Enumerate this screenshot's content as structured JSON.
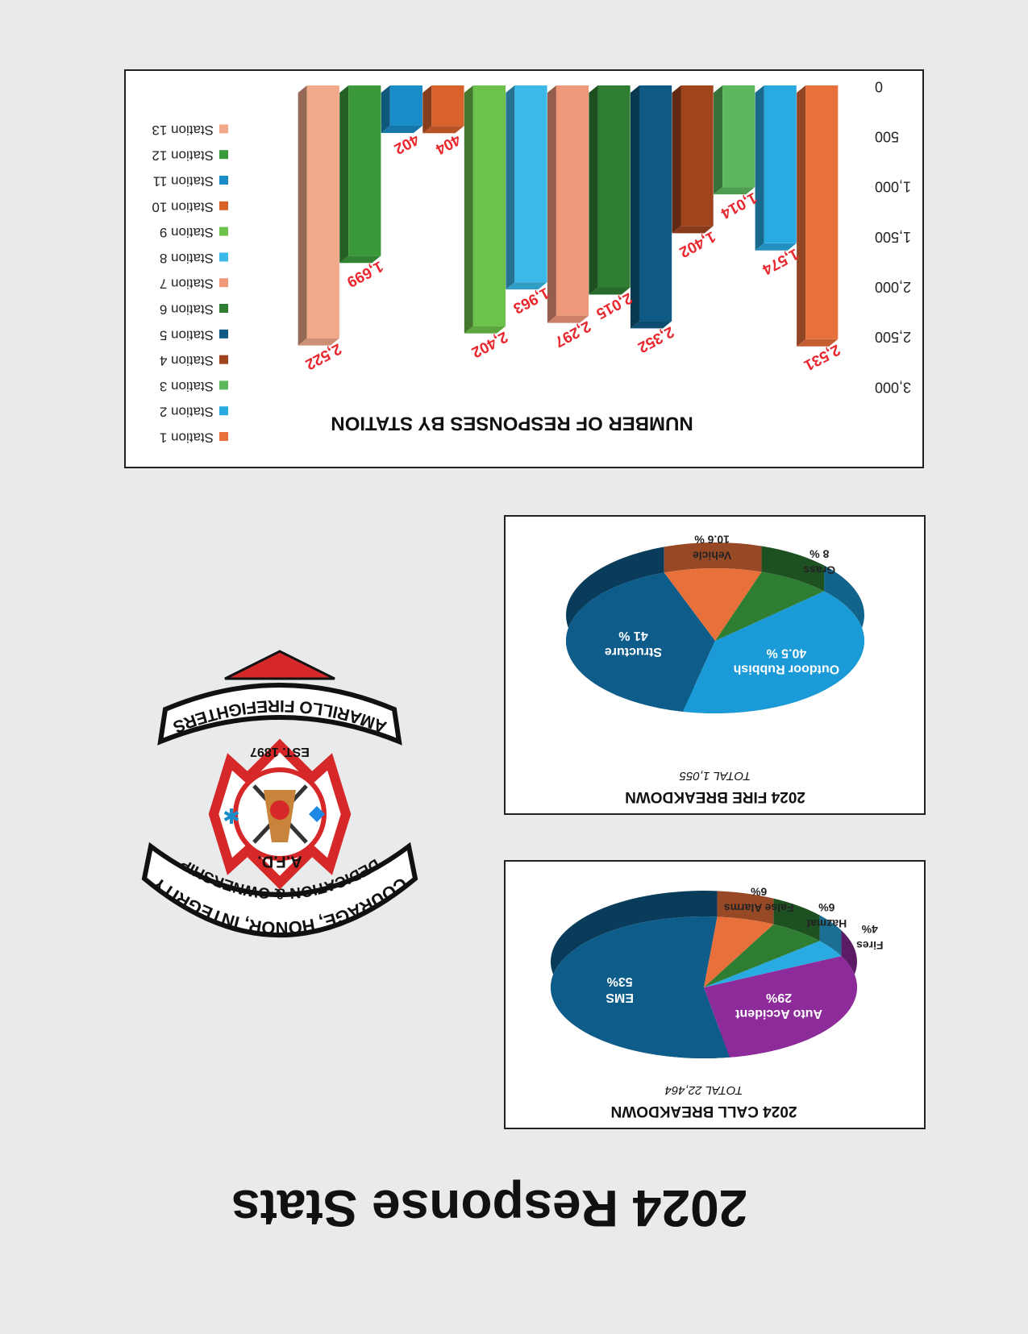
{
  "title": "2024 Response Stats",
  "logo": {
    "top_banner": "COURAGE, HONOR, INTEGRITY",
    "middle_banner": "DEDICATION & OWNERSHIP",
    "badge": "A.F.D.",
    "established": "EST. 1897",
    "bottom_banner": "AMARILLO FIREFIGHTERS"
  },
  "chart_data": [
    {
      "type": "pie",
      "title": "2024 CALL BREAKDOWN",
      "subtitle": "TOTAL 22,464",
      "categories": [
        "EMS",
        "Auto Accident",
        "Fires",
        "Hazmat",
        "False Alarms"
      ],
      "values": [
        53,
        29,
        4,
        6,
        6
      ],
      "value_labels": [
        "53%",
        "29%",
        "4%",
        "6%",
        "6%"
      ],
      "colors": [
        "#0d5c8a",
        "#8e2b9b",
        "#29abe2",
        "#2e7d32",
        "#e8703a"
      ]
    },
    {
      "type": "pie",
      "title": "2024 FIRE BREAKDOWN",
      "subtitle": "TOTAL 1,055",
      "categories": [
        "Structure",
        "Outdoor Rubbish",
        "Grass",
        "Vehicle"
      ],
      "values": [
        41,
        40.5,
        8,
        10.6
      ],
      "value_labels": [
        "41 %",
        "40.5 %",
        "8 %",
        "10.6 %"
      ],
      "colors": [
        "#0d5c8a",
        "#1a9ad6",
        "#2e7d32",
        "#e8703a"
      ]
    },
    {
      "type": "bar",
      "title": "NUMBER OF RESPONSES BY STATION",
      "categories": [
        "Station 1",
        "Station 2",
        "Station 3",
        "Station 4",
        "Station 5",
        "Station 6",
        "Station 7",
        "Station 8",
        "Station 9",
        "Station 10",
        "Station 11",
        "Station 12",
        "Station 13"
      ],
      "values": [
        2531,
        1574,
        1014,
        1402,
        2352,
        2015,
        2297,
        1963,
        2402,
        404,
        402,
        1699,
        2522
      ],
      "value_labels": [
        "2,531",
        "1,574",
        "1,014",
        "1,402",
        "2,352",
        "2,015",
        "2,297",
        "1,963",
        "2,402",
        "404",
        "402",
        "1,699",
        "2,522"
      ],
      "colors": [
        "#e8703a",
        "#29abe2",
        "#5cb85c",
        "#a0441e",
        "#0e5a84",
        "#2e7d32",
        "#f0987a",
        "#3bb9e8",
        "#6cc24a",
        "#d9622b",
        "#1a8cc8",
        "#3a9a3a",
        "#f2a98a"
      ],
      "ylim": [
        0,
        3000
      ],
      "yticks": [
        0,
        500,
        {
          "value": 1000,
          "label": "1,000"
        },
        {
          "value": 1500,
          "label": "1,500"
        },
        {
          "value": 2000,
          "label": "2,000"
        },
        {
          "value": 2500,
          "label": "2,500"
        },
        {
          "value": 3000,
          "label": "3,000"
        }
      ],
      "legend": "right"
    }
  ]
}
